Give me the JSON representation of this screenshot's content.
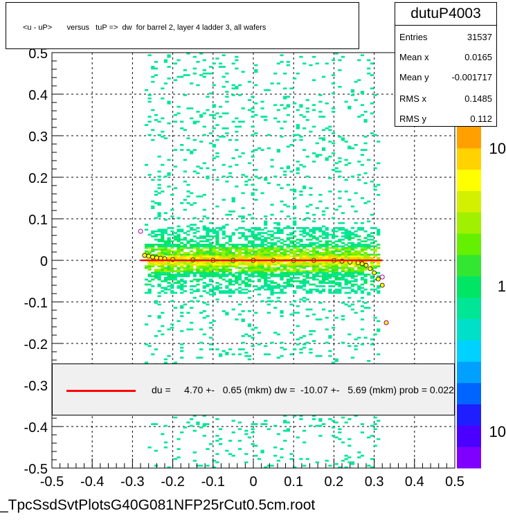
{
  "title": "<u - uP>       versus   tuP =>  dw  for barrel 2, layer 4 ladder 3, all wafers",
  "stats": {
    "name": "dutuP4003",
    "rows": [
      {
        "label": "Entries",
        "value": "31537"
      },
      {
        "label": "Mean x",
        "value": "0.0165"
      },
      {
        "label": "Mean y",
        "value": "-0.001717"
      },
      {
        "label": "RMS x",
        "value": "0.1485"
      },
      {
        "label": "RMS y",
        "value": "0.112"
      }
    ]
  },
  "legend": {
    "text": "du =     4.70 +-   0.65 (mkm) dw =  -10.07 +-   5.69 (mkm) prob = 0.022"
  },
  "footer": "_TpcSsdSvtPlotsG40G081NFP25rCut0.5cm.root",
  "colors": {
    "fit_line": "#ff0000",
    "palette": [
      "#7f00ff",
      "#4b00ff",
      "#1e1eff",
      "#0064ff",
      "#00a0ff",
      "#00d2ff",
      "#00e0c8",
      "#00e696",
      "#00e664",
      "#32e632",
      "#64f000",
      "#a0f000",
      "#d2f000",
      "#ffff00",
      "#ffd200",
      "#ffa000"
    ]
  },
  "chart_data": {
    "type": "heatmap",
    "title": "<u - uP>       versus   tuP =>  dw  for barrel 2, layer 4 ladder 3, all wafers",
    "xlabel": "",
    "ylabel": "",
    "xlim": [
      -0.5,
      0.5
    ],
    "ylim": [
      -0.5,
      0.5
    ],
    "x_ticks": [
      "-0.5",
      "-0.4",
      "-0.3",
      "-0.2",
      "-0.1",
      "0",
      "0.1",
      "0.2",
      "0.3",
      "0.4",
      "0.5"
    ],
    "y_ticks": [
      "-0.5",
      "-0.4",
      "-0.3",
      "-0.2",
      "-0.1",
      "0",
      "0.1",
      "0.2",
      "0.3",
      "0.4",
      "0.5"
    ],
    "grid": true,
    "colorbar": {
      "scale": "log",
      "tick_labels": [
        "10",
        "1",
        "10"
      ]
    },
    "data_x_range": [
      -0.27,
      0.31
    ],
    "band_y_center": 0.0,
    "fit_line": {
      "x": [
        -0.28,
        0.32
      ],
      "y": [
        0.0,
        0.0
      ]
    },
    "profile_points": {
      "x": [
        -0.27,
        -0.26,
        -0.25,
        -0.24,
        -0.23,
        -0.22,
        -0.2,
        -0.15,
        -0.1,
        -0.05,
        0.0,
        0.05,
        0.1,
        0.15,
        0.2,
        0.22,
        0.24,
        0.26,
        0.27,
        0.28,
        0.29,
        0.3,
        0.31,
        0.32,
        0.33
      ],
      "y": [
        0.012,
        0.01,
        0.008,
        0.006,
        0.005,
        0.004,
        0.002,
        0.001,
        0.0,
        0.0,
        0.0,
        0.0,
        0.0,
        0.0,
        0.0,
        -0.002,
        -0.004,
        -0.006,
        -0.008,
        -0.012,
        -0.02,
        -0.03,
        -0.045,
        -0.06,
        -0.15
      ]
    },
    "outliers": {
      "x": [
        -0.28,
        0.32,
        0.33
      ],
      "y": [
        0.07,
        -0.04,
        -0.15
      ]
    }
  }
}
